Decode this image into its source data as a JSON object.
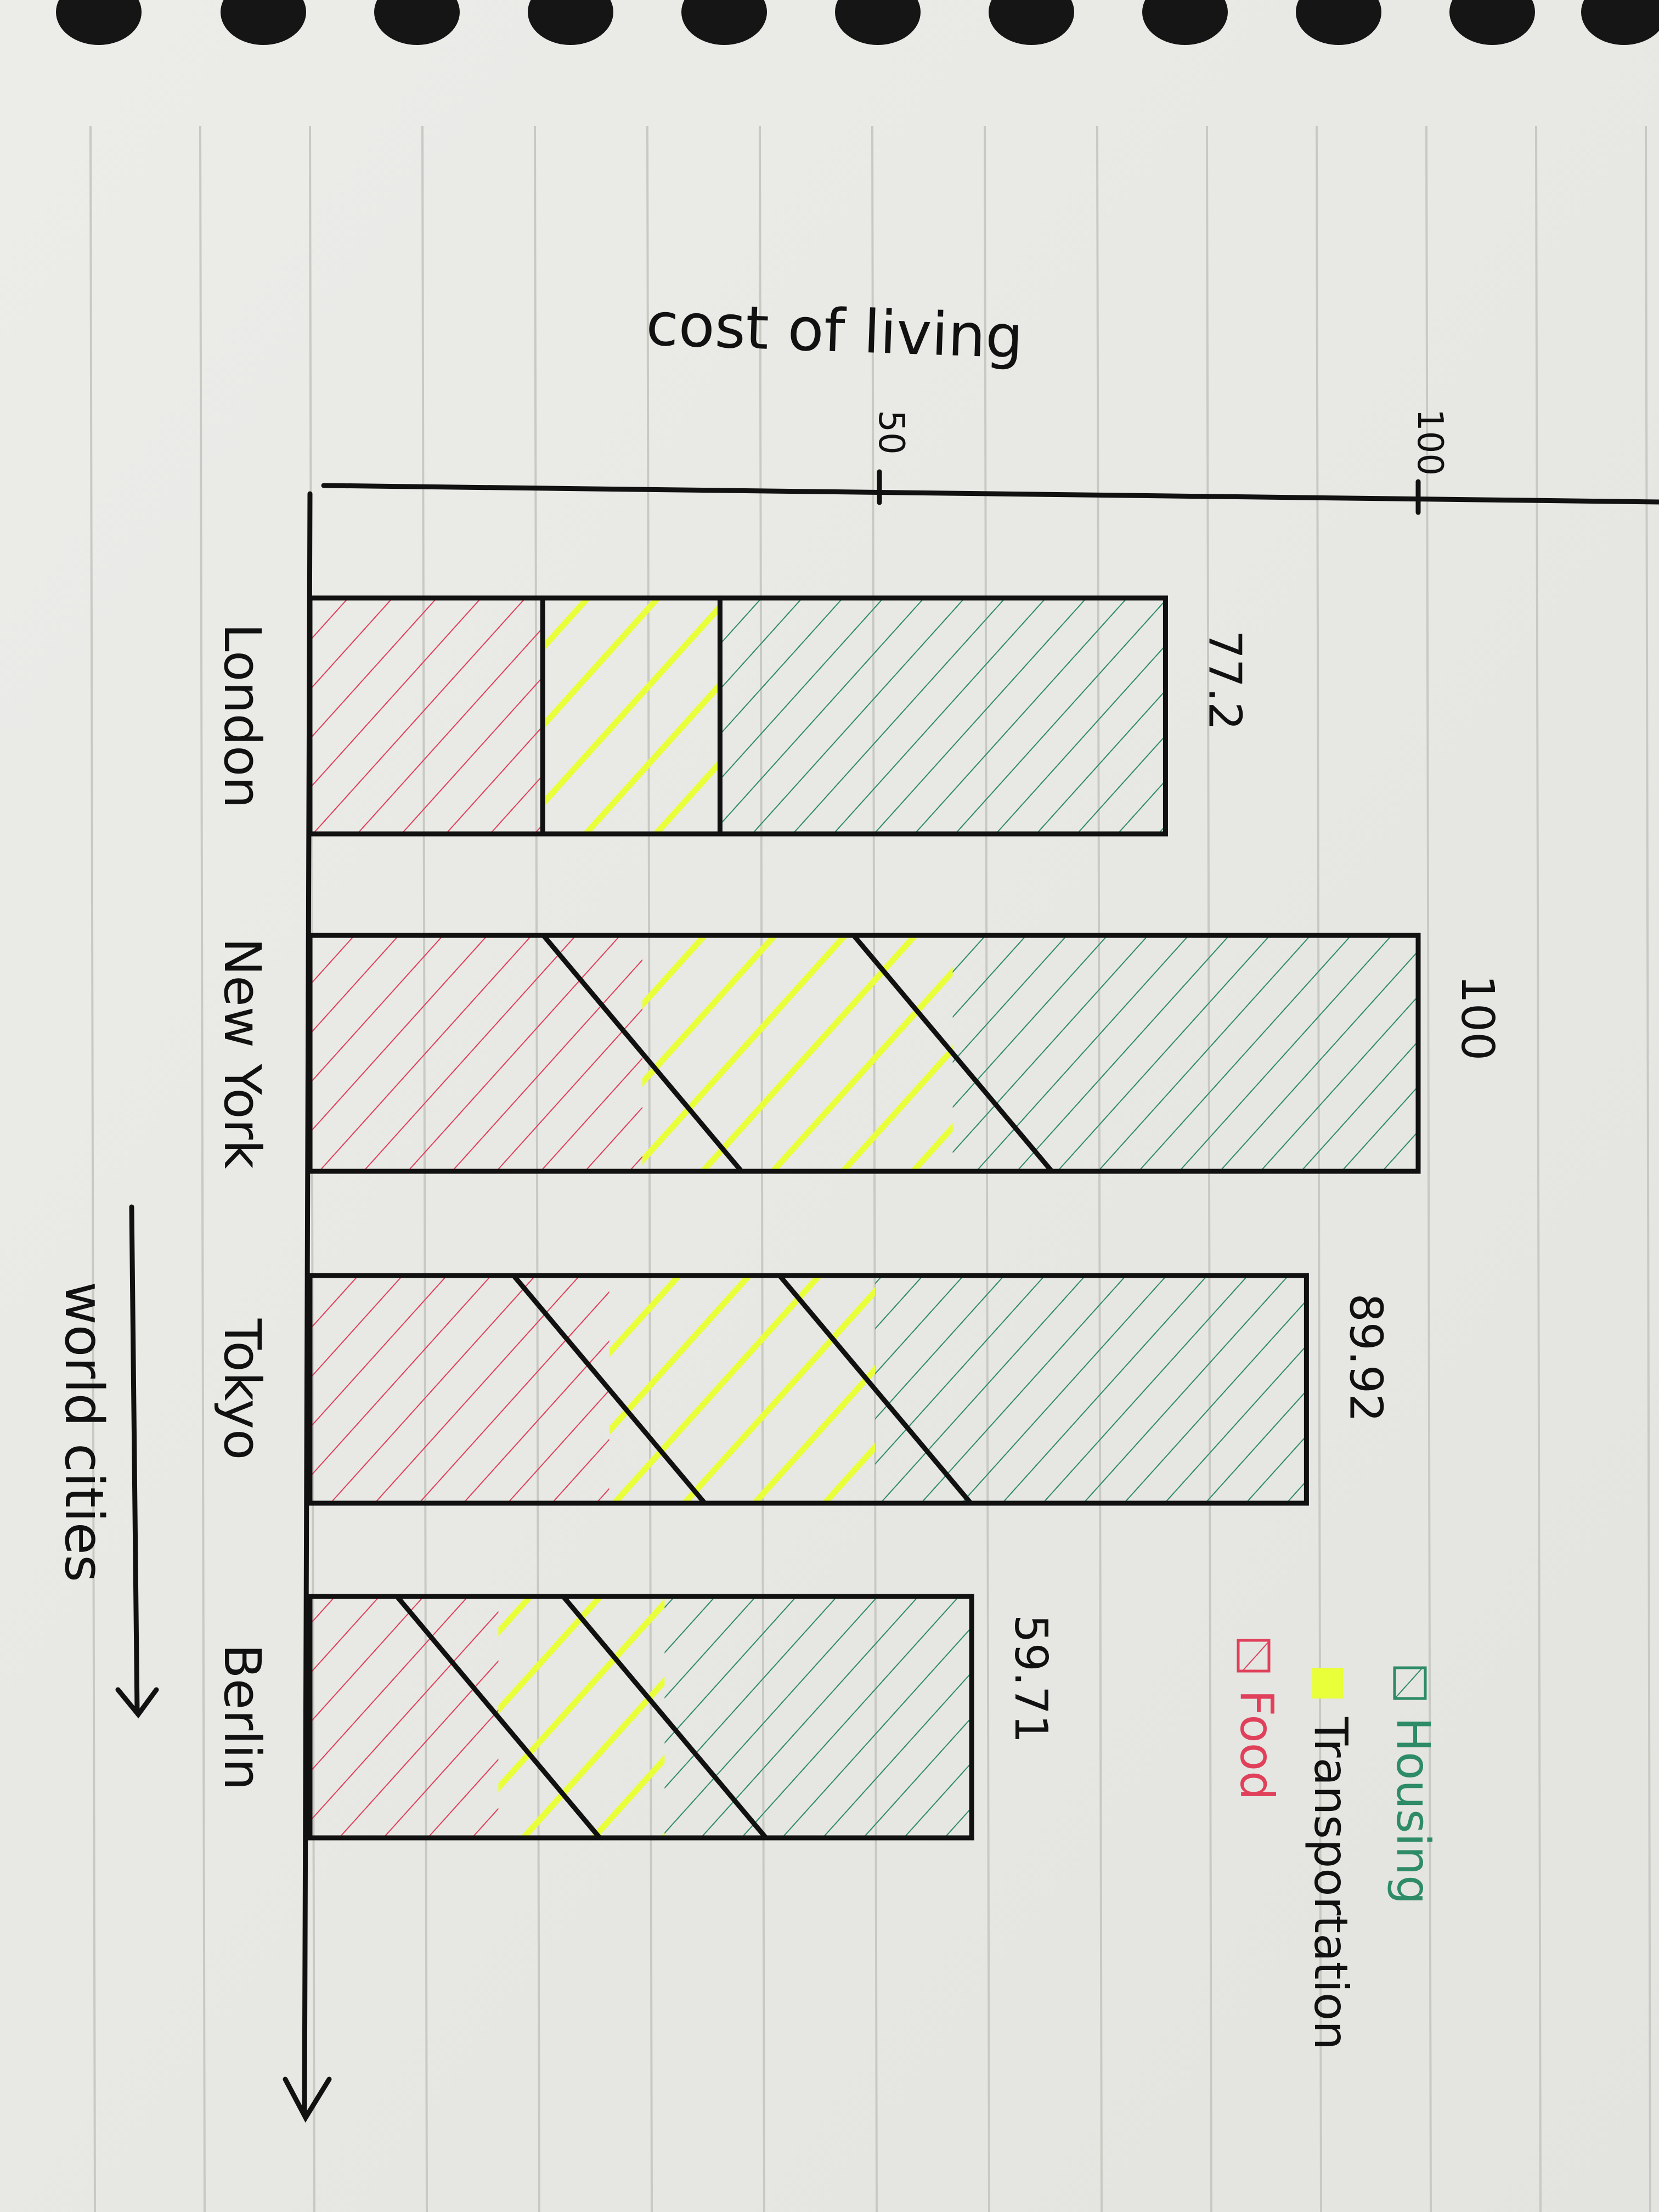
{
  "chart_data": {
    "type": "bar",
    "stacked": true,
    "orientation": "horizontal",
    "title": "cost of living",
    "xlabel": "",
    "ylabel": "world cities",
    "xlim": [
      0,
      100
    ],
    "x_ticks": [
      "50",
      "100"
    ],
    "categories": [
      "London",
      "New York",
      "Tokyo",
      "Berlin"
    ],
    "totals": [
      77.2,
      100,
      89.92,
      59.71
    ],
    "total_labels": [
      "77.2",
      "100",
      "89.92",
      "59.71"
    ],
    "series": [
      {
        "name": "Food",
        "values": [
          21.0,
          30.0,
          27.0,
          17.0
        ]
      },
      {
        "name": "Transportation",
        "values": [
          16.0,
          28.0,
          24.0,
          15.0
        ]
      },
      {
        "name": "Housing",
        "values": [
          40.2,
          42.0,
          38.92,
          27.71
        ]
      }
    ],
    "legend_position": "bottom-right",
    "legend_order": [
      "Housing",
      "Transportation",
      "Food"
    ],
    "grid": false,
    "colors": {
      "Housing": "#2e8b68",
      "Transportation": "#e8ff3a",
      "Food": "#e0405a",
      "ink": "#111111",
      "paper": "#ebebe8"
    }
  }
}
